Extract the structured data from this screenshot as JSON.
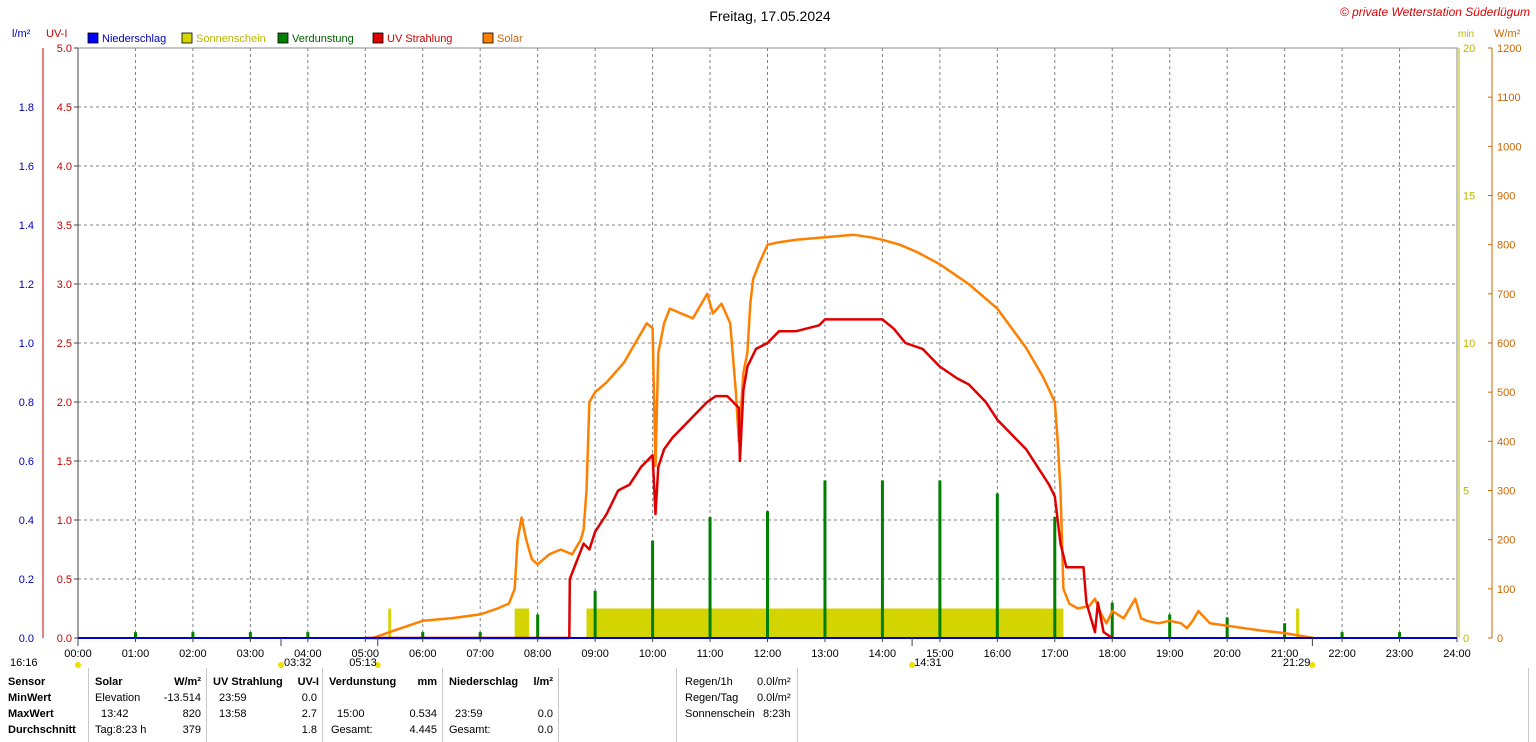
{
  "chart_data": {
    "type": "line",
    "title": "Freitag, 17.05.2024",
    "watermark": "© private Wetterstation Süderlügum",
    "left_axis_1": {
      "unit": "l/m²",
      "range": [
        0,
        2.0
      ],
      "ticks": [
        "0.0",
        "0.2",
        "0.4",
        "0.6",
        "0.8",
        "1.0",
        "1.2",
        "1.4",
        "1.6",
        "1.8"
      ],
      "color": "#0000bb"
    },
    "left_axis_2": {
      "unit": "UV-I",
      "range": [
        0,
        5.0
      ],
      "ticks": [
        "0.0",
        "0.5",
        "1.0",
        "1.5",
        "2.0",
        "2.5",
        "3.0",
        "3.5",
        "4.0",
        "4.5",
        "5.0"
      ],
      "color": "#cc0000"
    },
    "right_axis_1": {
      "unit": "min",
      "range": [
        0,
        20
      ],
      "ticks": [
        "0",
        "5",
        "10",
        "15",
        "20"
      ],
      "color": "#cccc00"
    },
    "right_axis_2": {
      "unit": "W/m²",
      "range": [
        0,
        1200
      ],
      "ticks": [
        "0",
        "100",
        "200",
        "300",
        "400",
        "500",
        "600",
        "700",
        "800",
        "900",
        "1000",
        "1100",
        "1200"
      ],
      "color": "#cc6600"
    },
    "x_ticks": [
      "00:00",
      "01:00",
      "02:00",
      "03:00",
      "04:00",
      "05:00",
      "06:00",
      "07:00",
      "08:00",
      "09:00",
      "10:00",
      "11:00",
      "12:00",
      "13:00",
      "14:00",
      "15:00",
      "16:00",
      "17:00",
      "18:00",
      "19:00",
      "20:00",
      "21:00",
      "22:00",
      "23:00",
      "24:00"
    ],
    "legend": [
      {
        "label": "Niederschlag",
        "color": "#0000ff"
      },
      {
        "label": "Sonnenschein",
        "color": "#d4d400"
      },
      {
        "label": "Verdunstung",
        "color": "#008000"
      },
      {
        "label": "UV Strahlung",
        "color": "#dd0000"
      },
      {
        "label": "Solar",
        "color": "#ff8000"
      }
    ],
    "markers": {
      "moonset_left": "16:16",
      "moonrise": "03:32",
      "sunrise": "05:13",
      "solar_noon": "14:31",
      "sunset": "21:29"
    },
    "series": [
      {
        "name": "Solar",
        "axis": "W/m²",
        "color": "#ff8000",
        "x": [
          5.13,
          5.5,
          6.0,
          6.5,
          7.0,
          7.3,
          7.5,
          7.6,
          7.65,
          7.72,
          7.8,
          7.9,
          8.0,
          8.2,
          8.4,
          8.6,
          8.75,
          8.8,
          8.85,
          8.9,
          9.0,
          9.2,
          9.5,
          9.7,
          9.9,
          10.0,
          10.05,
          10.1,
          10.2,
          10.3,
          10.5,
          10.7,
          10.85,
          10.95,
          11.05,
          11.2,
          11.35,
          11.45,
          11.5,
          11.58,
          11.65,
          11.7,
          11.75,
          11.85,
          12.0,
          12.2,
          12.5,
          13.0,
          13.5,
          13.8,
          14.0,
          14.3,
          14.6,
          15.0,
          15.5,
          16.0,
          16.5,
          16.8,
          17.0,
          17.05,
          17.1,
          17.15,
          17.25,
          17.4,
          17.6,
          17.7,
          17.8,
          17.9,
          18.0,
          18.2,
          18.4,
          18.5,
          18.6,
          18.8,
          19.0,
          19.2,
          19.3,
          19.4,
          19.5,
          19.7,
          20.0,
          20.3,
          20.6,
          21.0,
          21.4,
          21.5
        ],
        "y": [
          0,
          15,
          35,
          40,
          48,
          60,
          70,
          100,
          200,
          245,
          200,
          160,
          150,
          170,
          180,
          170,
          200,
          220,
          300,
          480,
          500,
          520,
          560,
          600,
          640,
          630,
          350,
          580,
          640,
          670,
          660,
          650,
          680,
          700,
          660,
          680,
          640,
          500,
          400,
          540,
          580,
          680,
          730,
          760,
          800,
          805,
          810,
          815,
          820,
          815,
          810,
          800,
          785,
          760,
          720,
          670,
          590,
          530,
          480,
          400,
          300,
          100,
          70,
          60,
          65,
          80,
          50,
          30,
          55,
          40,
          80,
          40,
          35,
          30,
          35,
          30,
          20,
          35,
          55,
          30,
          25,
          20,
          15,
          10,
          2,
          0
        ]
      },
      {
        "name": "UV Strahlung",
        "axis": "UV-I",
        "color": "#dd0000",
        "x": [
          5.0,
          8.55,
          8.56,
          8.8,
          8.9,
          9.0,
          9.2,
          9.4,
          9.6,
          9.8,
          10.0,
          10.05,
          10.1,
          10.2,
          10.35,
          10.55,
          10.75,
          10.95,
          11.1,
          11.3,
          11.5,
          11.52,
          11.58,
          11.65,
          11.8,
          12.0,
          12.2,
          12.5,
          12.9,
          13.0,
          13.5,
          13.9,
          14.0,
          14.2,
          14.4,
          14.7,
          14.9,
          15.0,
          15.3,
          15.5,
          15.8,
          16.0,
          16.2,
          16.5,
          16.7,
          16.9,
          17.0,
          17.1,
          17.2,
          17.5,
          17.55,
          17.7,
          17.75,
          17.85,
          18.0
        ],
        "y": [
          0,
          0,
          0.5,
          0.8,
          0.75,
          0.9,
          1.05,
          1.25,
          1.3,
          1.45,
          1.55,
          1.05,
          1.45,
          1.6,
          1.7,
          1.8,
          1.9,
          2.0,
          2.05,
          2.05,
          1.95,
          1.5,
          2.1,
          2.3,
          2.45,
          2.5,
          2.6,
          2.6,
          2.65,
          2.7,
          2.7,
          2.7,
          2.7,
          2.62,
          2.5,
          2.45,
          2.35,
          2.3,
          2.2,
          2.15,
          2.0,
          1.85,
          1.75,
          1.6,
          1.45,
          1.3,
          1.2,
          0.8,
          0.6,
          0.6,
          0.3,
          0.05,
          0.3,
          0.05,
          0
        ]
      }
    ],
    "sunshine_bars": [
      {
        "from": 5.4,
        "to": 5.45,
        "minutes": 1
      },
      {
        "from": 7.6,
        "to": 7.85,
        "minutes": 1
      },
      {
        "from": 8.85,
        "to": 17.15,
        "minutes": 1
      },
      {
        "from": 21.2,
        "to": 21.25,
        "minutes": 1
      }
    ],
    "evaporation_spikes": [
      {
        "x": 1.0,
        "value": 0.02
      },
      {
        "x": 2.0,
        "value": 0.02
      },
      {
        "x": 3.0,
        "value": 0.02
      },
      {
        "x": 4.0,
        "value": 0.02
      },
      {
        "x": 6.0,
        "value": 0.02
      },
      {
        "x": 7.0,
        "value": 0.02
      },
      {
        "x": 8.0,
        "value": 0.08
      },
      {
        "x": 9.0,
        "value": 0.16
      },
      {
        "x": 10.0,
        "value": 0.33
      },
      {
        "x": 11.0,
        "value": 0.41
      },
      {
        "x": 12.0,
        "value": 0.43
      },
      {
        "x": 13.0,
        "value": 0.534
      },
      {
        "x": 14.0,
        "value": 0.534
      },
      {
        "x": 15.0,
        "value": 0.534
      },
      {
        "x": 16.0,
        "value": 0.49
      },
      {
        "x": 17.0,
        "value": 0.41
      },
      {
        "x": 18.0,
        "value": 0.12
      },
      {
        "x": 19.0,
        "value": 0.08
      },
      {
        "x": 20.0,
        "value": 0.07
      },
      {
        "x": 21.0,
        "value": 0.05
      },
      {
        "x": 22.0,
        "value": 0.02
      },
      {
        "x": 23.0,
        "value": 0.02
      }
    ]
  },
  "stats": {
    "sensor": {
      "title": "Sensor",
      "min": "MinWert",
      "max": "MaxWert",
      "avg": "Durchschnitt"
    },
    "solar": {
      "title": "Solar",
      "unit": "W/m²",
      "min_time": "Elevation",
      "min_val": "-13.514",
      "max_time": "13:42",
      "max_val": "820",
      "avg_time": "Tag:8:23 h",
      "avg_val": "379"
    },
    "uv": {
      "title": "UV Strahlung",
      "unit": "UV-I",
      "min_time": "23:59",
      "min_val": "0.0",
      "max_time": "13:58",
      "max_val": "2.7",
      "avg_val": "1.8"
    },
    "evap": {
      "title": "Verdunstung",
      "unit": "mm",
      "max_time": "15:00",
      "max_val": "0.534",
      "total_label": "Gesamt:",
      "total_val": "4.445"
    },
    "rain": {
      "title": "Niederschlag",
      "unit": "l/m²",
      "max_time": "23:59",
      "max_val": "0.0",
      "total_label": "Gesamt:",
      "total_val": "0.0"
    },
    "summary": [
      {
        "label": "Regen/1h",
        "value": "0.0l/m²"
      },
      {
        "label": "Regen/Tag",
        "value": "0.0l/m²"
      },
      {
        "label": "Sonnenschein",
        "value": "8:23h"
      }
    ]
  }
}
